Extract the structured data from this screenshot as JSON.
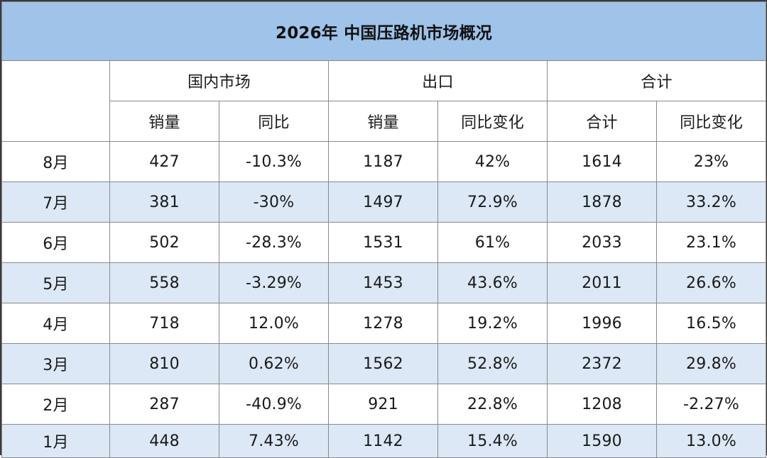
{
  "chart_data": {
    "type": "table",
    "title": "2026年 中国压路机市场概况",
    "column_groups": [
      {
        "label": "国内市场",
        "columns": [
          "销量",
          "同比"
        ]
      },
      {
        "label": "出口",
        "columns": [
          "销量",
          "同比变化"
        ]
      },
      {
        "label": "合计",
        "columns": [
          "合计",
          "同比变化"
        ]
      }
    ],
    "rows": [
      {
        "month": "8月",
        "cells": [
          "427",
          "-10.3%",
          "1187",
          "42%",
          "1614",
          "23%"
        ]
      },
      {
        "month": "7月",
        "cells": [
          "381",
          "-30%",
          "1497",
          "72.9%",
          "1878",
          "33.2%"
        ]
      },
      {
        "month": "6月",
        "cells": [
          "502",
          "-28.3%",
          "1531",
          "61%",
          "2033",
          "23.1%"
        ]
      },
      {
        "month": "5月",
        "cells": [
          "558",
          "-3.29%",
          "1453",
          "43.6%",
          "2011",
          "26.6%"
        ]
      },
      {
        "month": "4月",
        "cells": [
          "718",
          "12.0%",
          "1278",
          "19.2%",
          "1996",
          "16.5%"
        ]
      },
      {
        "month": "3月",
        "cells": [
          "810",
          "0.62%",
          "1562",
          "52.8%",
          "2372",
          "29.8%"
        ]
      },
      {
        "month": "2月",
        "cells": [
          "287",
          "-40.9%",
          "921",
          "22.8%",
          "1208",
          "-2.27%"
        ]
      },
      {
        "month": "1月",
        "cells": [
          "448",
          "7.43%",
          "1142",
          "15.4%",
          "1590",
          "13.0%"
        ]
      }
    ],
    "colors": {
      "header_fill": "#9fc3e9",
      "stripe_fill": "#dce8f6",
      "border": "#8a8a8a"
    }
  }
}
